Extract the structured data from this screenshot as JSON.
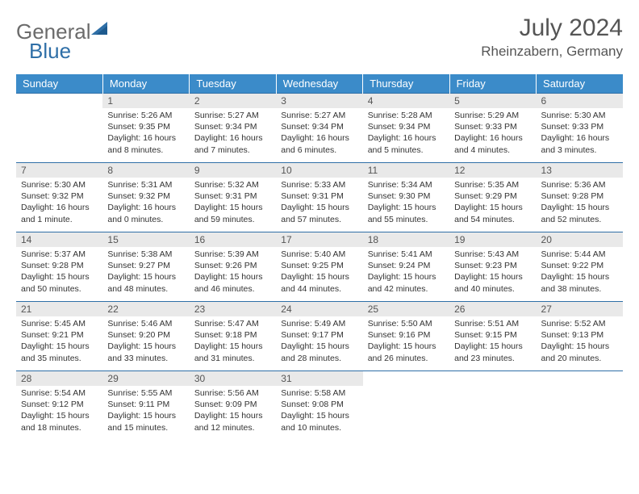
{
  "logo": {
    "text1": "General",
    "text2": "Blue"
  },
  "title": "July 2024",
  "location": "Rheinzabern, Germany",
  "colors": {
    "header_bg": "#3b8bc9",
    "header_text": "#ffffff",
    "row_border": "#2f6fa7",
    "daynum_bg": "#e9e9e9",
    "logo_gray": "#6b6b6b",
    "logo_blue": "#2f6fa7"
  },
  "daynames": [
    "Sunday",
    "Monday",
    "Tuesday",
    "Wednesday",
    "Thursday",
    "Friday",
    "Saturday"
  ],
  "weeks": [
    [
      null,
      {
        "n": "1",
        "sr": "5:26 AM",
        "ss": "9:35 PM",
        "dl": "16 hours and 8 minutes."
      },
      {
        "n": "2",
        "sr": "5:27 AM",
        "ss": "9:34 PM",
        "dl": "16 hours and 7 minutes."
      },
      {
        "n": "3",
        "sr": "5:27 AM",
        "ss": "9:34 PM",
        "dl": "16 hours and 6 minutes."
      },
      {
        "n": "4",
        "sr": "5:28 AM",
        "ss": "9:34 PM",
        "dl": "16 hours and 5 minutes."
      },
      {
        "n": "5",
        "sr": "5:29 AM",
        "ss": "9:33 PM",
        "dl": "16 hours and 4 minutes."
      },
      {
        "n": "6",
        "sr": "5:30 AM",
        "ss": "9:33 PM",
        "dl": "16 hours and 3 minutes."
      }
    ],
    [
      {
        "n": "7",
        "sr": "5:30 AM",
        "ss": "9:32 PM",
        "dl": "16 hours and 1 minute."
      },
      {
        "n": "8",
        "sr": "5:31 AM",
        "ss": "9:32 PM",
        "dl": "16 hours and 0 minutes."
      },
      {
        "n": "9",
        "sr": "5:32 AM",
        "ss": "9:31 PM",
        "dl": "15 hours and 59 minutes."
      },
      {
        "n": "10",
        "sr": "5:33 AM",
        "ss": "9:31 PM",
        "dl": "15 hours and 57 minutes."
      },
      {
        "n": "11",
        "sr": "5:34 AM",
        "ss": "9:30 PM",
        "dl": "15 hours and 55 minutes."
      },
      {
        "n": "12",
        "sr": "5:35 AM",
        "ss": "9:29 PM",
        "dl": "15 hours and 54 minutes."
      },
      {
        "n": "13",
        "sr": "5:36 AM",
        "ss": "9:28 PM",
        "dl": "15 hours and 52 minutes."
      }
    ],
    [
      {
        "n": "14",
        "sr": "5:37 AM",
        "ss": "9:28 PM",
        "dl": "15 hours and 50 minutes."
      },
      {
        "n": "15",
        "sr": "5:38 AM",
        "ss": "9:27 PM",
        "dl": "15 hours and 48 minutes."
      },
      {
        "n": "16",
        "sr": "5:39 AM",
        "ss": "9:26 PM",
        "dl": "15 hours and 46 minutes."
      },
      {
        "n": "17",
        "sr": "5:40 AM",
        "ss": "9:25 PM",
        "dl": "15 hours and 44 minutes."
      },
      {
        "n": "18",
        "sr": "5:41 AM",
        "ss": "9:24 PM",
        "dl": "15 hours and 42 minutes."
      },
      {
        "n": "19",
        "sr": "5:43 AM",
        "ss": "9:23 PM",
        "dl": "15 hours and 40 minutes."
      },
      {
        "n": "20",
        "sr": "5:44 AM",
        "ss": "9:22 PM",
        "dl": "15 hours and 38 minutes."
      }
    ],
    [
      {
        "n": "21",
        "sr": "5:45 AM",
        "ss": "9:21 PM",
        "dl": "15 hours and 35 minutes."
      },
      {
        "n": "22",
        "sr": "5:46 AM",
        "ss": "9:20 PM",
        "dl": "15 hours and 33 minutes."
      },
      {
        "n": "23",
        "sr": "5:47 AM",
        "ss": "9:18 PM",
        "dl": "15 hours and 31 minutes."
      },
      {
        "n": "24",
        "sr": "5:49 AM",
        "ss": "9:17 PM",
        "dl": "15 hours and 28 minutes."
      },
      {
        "n": "25",
        "sr": "5:50 AM",
        "ss": "9:16 PM",
        "dl": "15 hours and 26 minutes."
      },
      {
        "n": "26",
        "sr": "5:51 AM",
        "ss": "9:15 PM",
        "dl": "15 hours and 23 minutes."
      },
      {
        "n": "27",
        "sr": "5:52 AM",
        "ss": "9:13 PM",
        "dl": "15 hours and 20 minutes."
      }
    ],
    [
      {
        "n": "28",
        "sr": "5:54 AM",
        "ss": "9:12 PM",
        "dl": "15 hours and 18 minutes."
      },
      {
        "n": "29",
        "sr": "5:55 AM",
        "ss": "9:11 PM",
        "dl": "15 hours and 15 minutes."
      },
      {
        "n": "30",
        "sr": "5:56 AM",
        "ss": "9:09 PM",
        "dl": "15 hours and 12 minutes."
      },
      {
        "n": "31",
        "sr": "5:58 AM",
        "ss": "9:08 PM",
        "dl": "15 hours and 10 minutes."
      },
      null,
      null,
      null
    ]
  ],
  "labels": {
    "sunrise": "Sunrise:",
    "sunset": "Sunset:",
    "daylight": "Daylight:"
  }
}
